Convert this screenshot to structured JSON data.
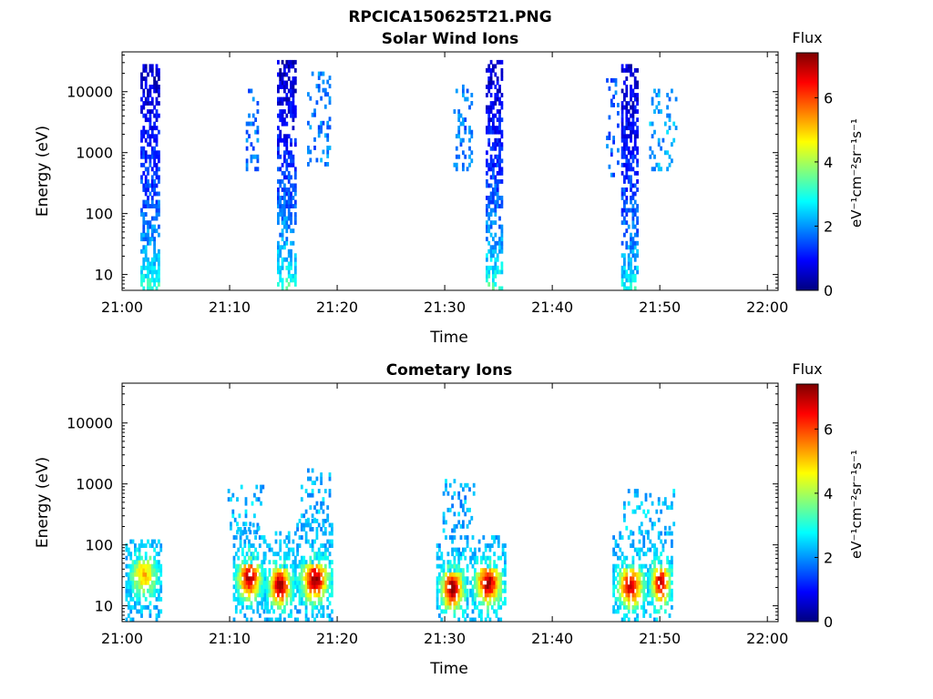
{
  "figure": {
    "title": "RPCICA150625T21.PNG"
  },
  "colormap": {
    "name": "jet",
    "stops": [
      "#00007f",
      "#0000ff",
      "#007fff",
      "#00ffff",
      "#7fff7f",
      "#ffff00",
      "#ff7f00",
      "#ff0000",
      "#7f0000"
    ]
  },
  "chart_data": [
    {
      "type": "heatmap",
      "title": "Solar Wind Ions",
      "xlabel": "Time",
      "ylabel": "Energy (eV)",
      "xticks": [
        "21:00",
        "21:10",
        "21:20",
        "21:30",
        "21:40",
        "21:50",
        "22:00"
      ],
      "xlim_minutes": [
        0,
        61
      ],
      "yscale": "log",
      "ylim": [
        5.5,
        45000
      ],
      "yticks": [
        10,
        100,
        1000,
        10000
      ],
      "ytick_labels": [
        "10",
        "100",
        "1000",
        "10000"
      ],
      "colorbar": {
        "label": "Flux",
        "unit": "eV⁻¹cm⁻²sr⁻¹s⁻¹",
        "range": [
          0,
          7.4
        ],
        "ticks": [
          0,
          2,
          4,
          6
        ]
      },
      "bursts": [
        {
          "t_start_min": 1.7,
          "t_end_min": 3.4,
          "e_min_eV": 6,
          "e_max_eV": 25000,
          "flux_low_energy": 3.3,
          "flux_high_energy": 0.5
        },
        {
          "t_start_min": 14.4,
          "t_end_min": 16.1,
          "e_min_eV": 6,
          "e_max_eV": 30000,
          "flux_low_energy": 3.4,
          "flux_high_energy": 0.5
        },
        {
          "t_start_min": 33.8,
          "t_end_min": 35.4,
          "e_min_eV": 6,
          "e_max_eV": 30000,
          "flux_low_energy": 3.4,
          "flux_high_energy": 0.5
        },
        {
          "t_start_min": 46.4,
          "t_end_min": 48.0,
          "e_min_eV": 6,
          "e_max_eV": 28000,
          "flux_low_energy": 3.0,
          "flux_high_energy": 0.5
        }
      ],
      "scattered": [
        {
          "t_start_min": 11.5,
          "t_end_min": 12.6,
          "e_min_eV": 500,
          "e_max_eV": 10000,
          "flux": 1.8
        },
        {
          "t_start_min": 17.2,
          "t_end_min": 19.2,
          "e_min_eV": 600,
          "e_max_eV": 20000,
          "flux": 1.8
        },
        {
          "t_start_min": 30.8,
          "t_end_min": 32.6,
          "e_min_eV": 500,
          "e_max_eV": 12000,
          "flux": 1.8
        },
        {
          "t_start_min": 45.0,
          "t_end_min": 46.2,
          "e_min_eV": 400,
          "e_max_eV": 15000,
          "flux": 1.6
        },
        {
          "t_start_min": 49.0,
          "t_end_min": 51.5,
          "e_min_eV": 500,
          "e_max_eV": 10000,
          "flux": 2.1
        }
      ]
    },
    {
      "type": "heatmap",
      "title": "Cometary Ions",
      "xlabel": "Time",
      "ylabel": "Energy (eV)",
      "xticks": [
        "21:00",
        "21:10",
        "21:20",
        "21:30",
        "21:40",
        "21:50",
        "22:00"
      ],
      "xlim_minutes": [
        0,
        61
      ],
      "yscale": "log",
      "ylim": [
        5.5,
        45000
      ],
      "yticks": [
        10,
        100,
        1000,
        10000
      ],
      "ytick_labels": [
        "10",
        "100",
        "1000",
        "10000"
      ],
      "colorbar": {
        "label": "Flux",
        "unit": "eV⁻¹cm⁻²sr⁻¹s⁻¹",
        "range": [
          0,
          7.4
        ],
        "ticks": [
          0,
          2,
          4,
          6
        ]
      },
      "bursts": [
        {
          "t_start_min": 0.3,
          "t_end_min": 3.6,
          "e_min_eV": 6,
          "e_max_eV": 120,
          "peak_energy_eV": 30,
          "peak_flux": 5.1
        },
        {
          "t_start_min": 10.3,
          "t_end_min": 13.2,
          "e_min_eV": 6,
          "e_max_eV": 200,
          "peak_energy_eV": 27,
          "peak_flux": 7.0
        },
        {
          "t_start_min": 13.2,
          "t_end_min": 16.0,
          "e_min_eV": 6,
          "e_max_eV": 160,
          "peak_energy_eV": 20,
          "peak_flux": 7.1
        },
        {
          "t_start_min": 16.2,
          "t_end_min": 19.5,
          "e_min_eV": 6,
          "e_max_eV": 250,
          "peak_energy_eV": 25,
          "peak_flux": 7.2
        },
        {
          "t_start_min": 29.2,
          "t_end_min": 32.0,
          "e_min_eV": 6,
          "e_max_eV": 130,
          "peak_energy_eV": 18,
          "peak_flux": 7.2
        },
        {
          "t_start_min": 32.3,
          "t_end_min": 35.6,
          "e_min_eV": 6,
          "e_max_eV": 140,
          "peak_energy_eV": 22,
          "peak_flux": 7.1
        },
        {
          "t_start_min": 45.6,
          "t_end_min": 48.8,
          "e_min_eV": 6,
          "e_max_eV": 150,
          "peak_energy_eV": 20,
          "peak_flux": 6.9
        },
        {
          "t_start_min": 48.8,
          "t_end_min": 51.2,
          "e_min_eV": 6,
          "e_max_eV": 150,
          "peak_energy_eV": 22,
          "peak_flux": 7.0
        }
      ],
      "scattered": [
        {
          "t_start_min": 9.8,
          "t_end_min": 13.0,
          "e_min_eV": 150,
          "e_max_eV": 950,
          "flux": 2.3
        },
        {
          "t_start_min": 16.6,
          "t_end_min": 19.2,
          "e_min_eV": 150,
          "e_max_eV": 1600,
          "flux": 2.3
        },
        {
          "t_start_min": 29.8,
          "t_end_min": 32.8,
          "e_min_eV": 160,
          "e_max_eV": 1100,
          "flux": 2.2
        },
        {
          "t_start_min": 34.6,
          "t_end_min": 35.2,
          "e_min_eV": 1000,
          "e_max_eV": 1400,
          "flux": 2.2
        },
        {
          "t_start_min": 46.6,
          "t_end_min": 51.4,
          "e_min_eV": 150,
          "e_max_eV": 800,
          "flux": 2.3
        }
      ]
    }
  ]
}
